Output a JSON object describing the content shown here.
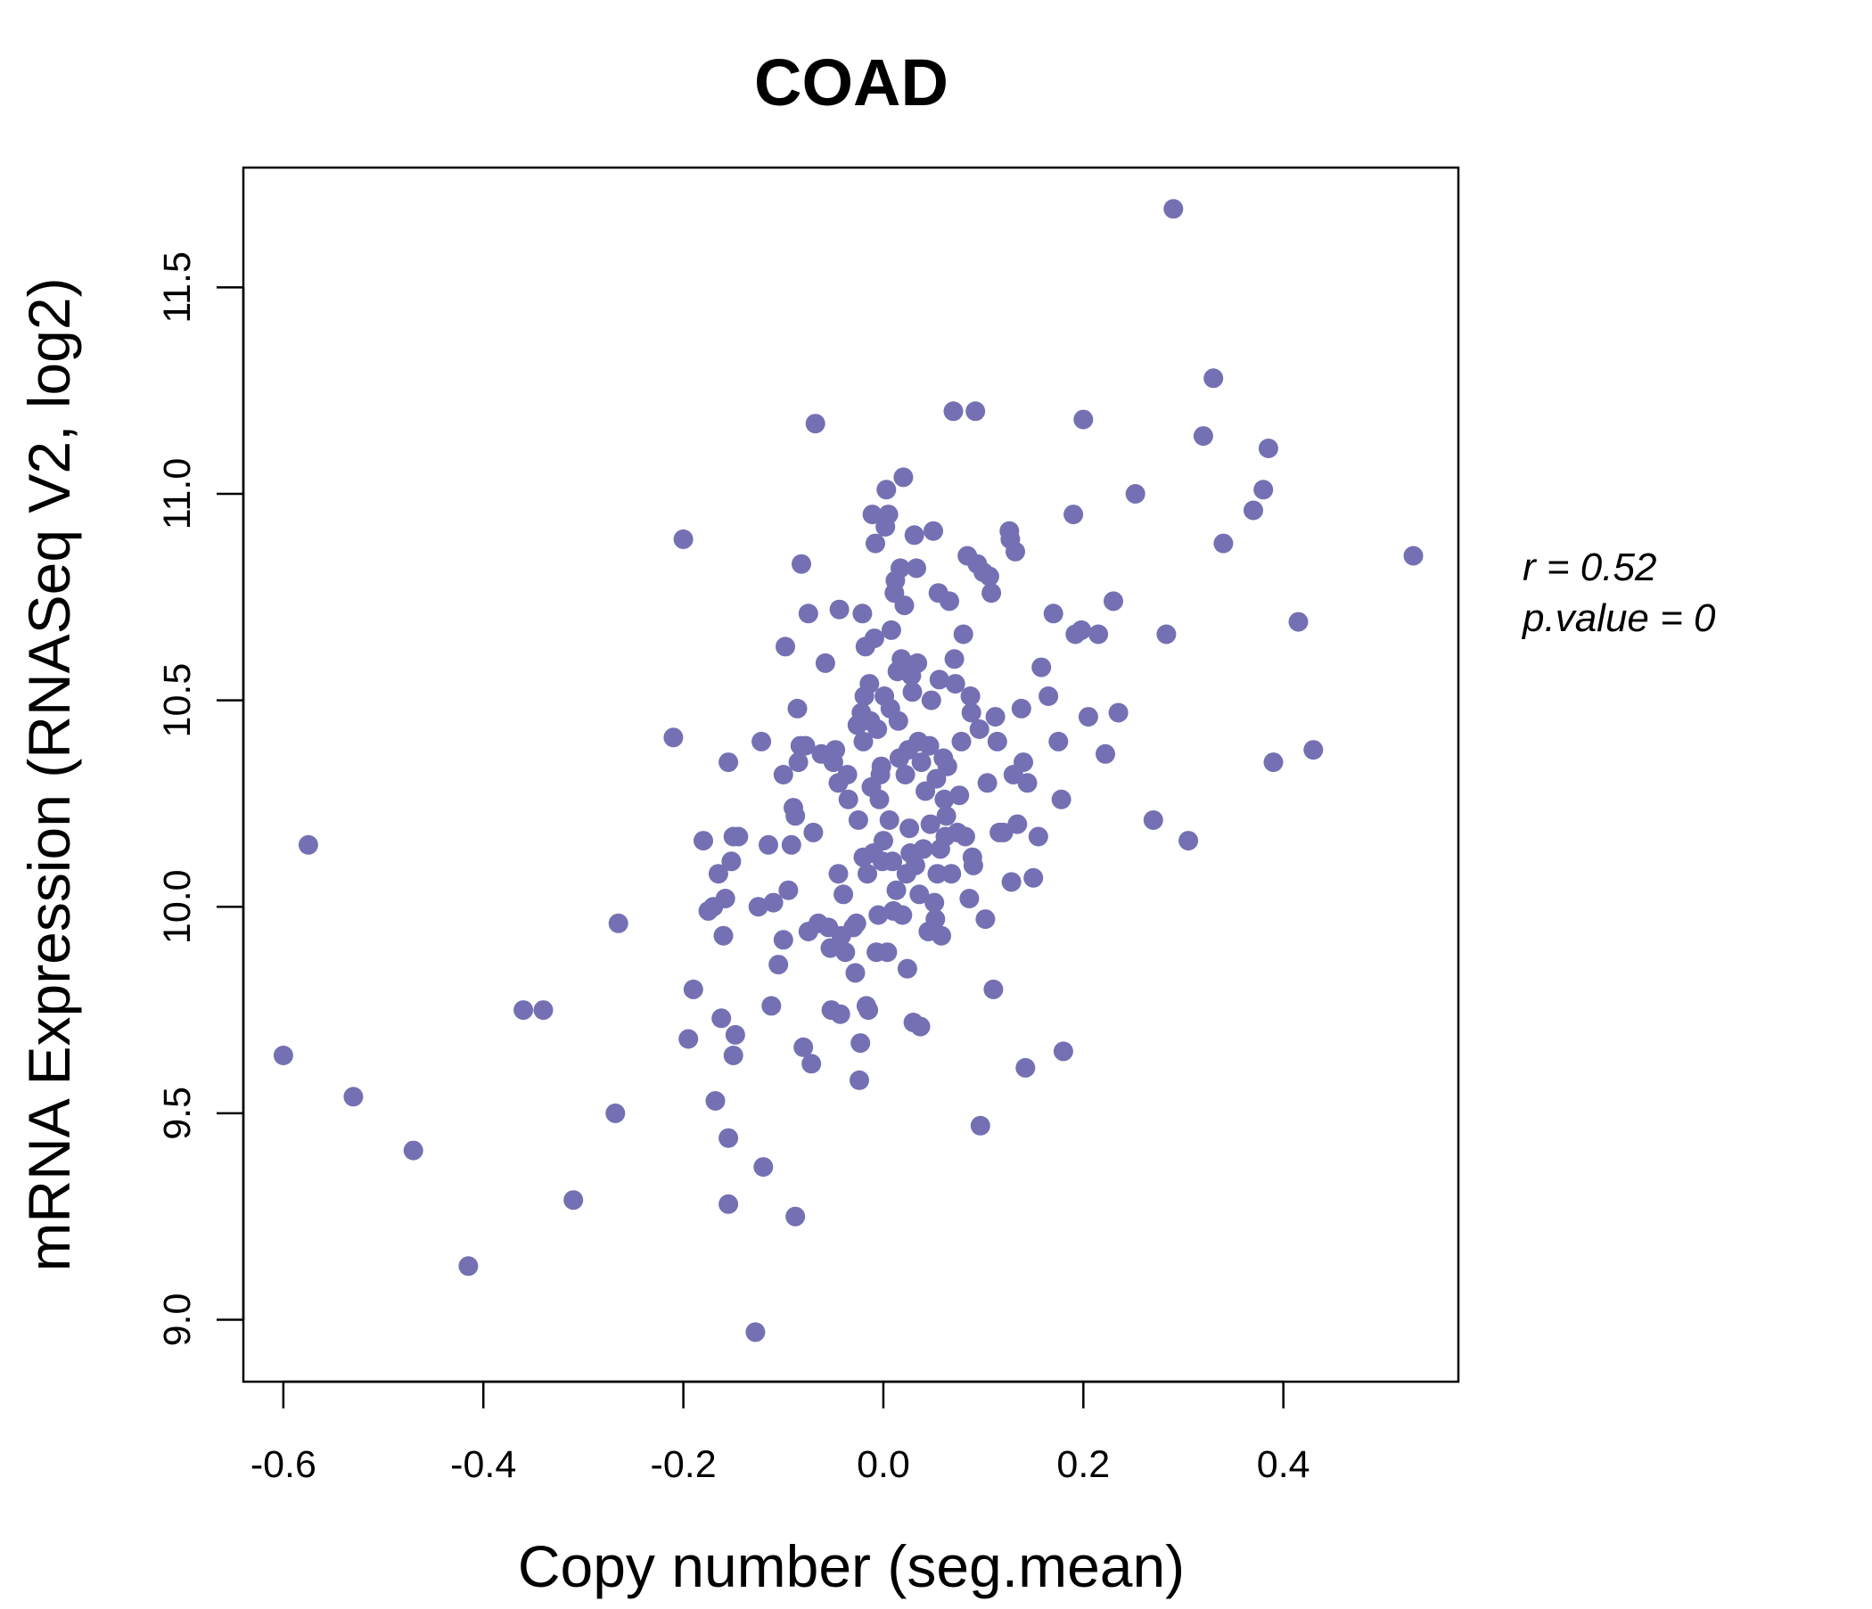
{
  "chart_data": {
    "type": "scatter",
    "title": "COAD",
    "xlabel": "Copy number (seg.mean)",
    "ylabel": "mRNA Expression (RNASeq V2, log2)",
    "xlim": [
      -0.64,
      0.575
    ],
    "ylim": [
      8.85,
      11.79
    ],
    "x_ticks": [
      -0.6,
      -0.4,
      -0.2,
      0.0,
      0.2,
      0.4
    ],
    "x_tick_labels": [
      "-0.6",
      "-0.4",
      "-0.2",
      "0.0",
      "0.2",
      "0.4"
    ],
    "y_ticks": [
      9.0,
      9.5,
      10.0,
      10.5,
      11.0,
      11.5
    ],
    "y_tick_labels": [
      "9.0",
      "9.5",
      "10.0",
      "10.5",
      "11.0",
      "11.5"
    ],
    "grid": false,
    "legend": "none",
    "colors": {
      "points": "#7570b3",
      "title": "#7570b3",
      "axes": "#000000"
    },
    "annotation": {
      "r_text": "r = 0.52",
      "p_text": "p.value = 0"
    },
    "points": [
      [
        -0.6,
        9.64
      ],
      [
        -0.575,
        10.15
      ],
      [
        -0.53,
        9.54
      ],
      [
        -0.47,
        9.41
      ],
      [
        -0.415,
        9.13
      ],
      [
        -0.36,
        9.75
      ],
      [
        -0.34,
        9.75
      ],
      [
        -0.31,
        9.29
      ],
      [
        -0.265,
        9.96
      ],
      [
        -0.268,
        9.5
      ],
      [
        -0.21,
        10.41
      ],
      [
        -0.2,
        10.89
      ],
      [
        -0.195,
        9.68
      ],
      [
        -0.19,
        9.8
      ],
      [
        -0.18,
        10.16
      ],
      [
        -0.175,
        9.99
      ],
      [
        -0.17,
        10.0
      ],
      [
        -0.168,
        9.53
      ],
      [
        -0.165,
        10.08
      ],
      [
        -0.162,
        9.73
      ],
      [
        -0.16,
        9.93
      ],
      [
        -0.158,
        10.02
      ],
      [
        -0.155,
        10.35
      ],
      [
        -0.155,
        9.44
      ],
      [
        -0.155,
        9.28
      ],
      [
        -0.152,
        10.11
      ],
      [
        -0.15,
        10.17
      ],
      [
        -0.15,
        9.64
      ],
      [
        -0.148,
        9.69
      ],
      [
        -0.145,
        10.17
      ],
      [
        -0.128,
        8.97
      ],
      [
        -0.125,
        10.0
      ],
      [
        -0.122,
        10.4
      ],
      [
        -0.12,
        9.37
      ],
      [
        -0.115,
        10.15
      ],
      [
        -0.112,
        9.76
      ],
      [
        -0.11,
        10.01
      ],
      [
        -0.105,
        9.86
      ],
      [
        -0.1,
        10.32
      ],
      [
        -0.1,
        9.92
      ],
      [
        -0.098,
        10.63
      ],
      [
        -0.095,
        10.04
      ],
      [
        -0.092,
        10.15
      ],
      [
        -0.09,
        10.24
      ],
      [
        -0.088,
        10.22
      ],
      [
        -0.088,
        9.25
      ],
      [
        -0.086,
        10.48
      ],
      [
        -0.085,
        10.35
      ],
      [
        -0.083,
        10.39
      ],
      [
        -0.082,
        10.83
      ],
      [
        -0.08,
        9.66
      ],
      [
        -0.078,
        10.39
      ],
      [
        -0.075,
        10.71
      ],
      [
        -0.075,
        9.94
      ],
      [
        -0.072,
        9.62
      ],
      [
        -0.07,
        10.18
      ],
      [
        -0.068,
        11.17
      ],
      [
        -0.065,
        9.96
      ],
      [
        -0.062,
        10.37
      ],
      [
        -0.058,
        10.59
      ],
      [
        -0.055,
        9.95
      ],
      [
        -0.053,
        9.9
      ],
      [
        -0.052,
        9.75
      ],
      [
        -0.05,
        10.35
      ],
      [
        -0.048,
        10.38
      ],
      [
        -0.045,
        10.3
      ],
      [
        -0.045,
        10.08
      ],
      [
        -0.044,
        10.72
      ],
      [
        -0.043,
        9.74
      ],
      [
        -0.042,
        9.93
      ],
      [
        -0.04,
        10.03
      ],
      [
        -0.038,
        9.89
      ],
      [
        -0.036,
        10.32
      ],
      [
        -0.035,
        10.26
      ],
      [
        -0.03,
        9.95
      ],
      [
        -0.028,
        9.84
      ],
      [
        -0.027,
        9.96
      ],
      [
        -0.026,
        10.44
      ],
      [
        -0.025,
        10.21
      ],
      [
        -0.024,
        9.58
      ],
      [
        -0.023,
        9.67
      ],
      [
        -0.022,
        10.47
      ],
      [
        -0.021,
        10.71
      ],
      [
        -0.02,
        10.4
      ],
      [
        -0.02,
        10.12
      ],
      [
        -0.019,
        10.51
      ],
      [
        -0.018,
        10.63
      ],
      [
        -0.017,
        9.76
      ],
      [
        -0.016,
        10.08
      ],
      [
        -0.015,
        9.75
      ],
      [
        -0.014,
        10.54
      ],
      [
        -0.013,
        10.45
      ],
      [
        -0.012,
        10.29
      ],
      [
        -0.011,
        10.95
      ],
      [
        -0.01,
        10.13
      ],
      [
        -0.009,
        10.65
      ],
      [
        -0.008,
        10.88
      ],
      [
        -0.007,
        9.89
      ],
      [
        -0.006,
        10.43
      ],
      [
        -0.005,
        9.98
      ],
      [
        -0.004,
        10.26
      ],
      [
        -0.003,
        10.32
      ],
      [
        -0.002,
        10.34
      ],
      [
        -0.001,
        10.11
      ],
      [
        0.0,
        10.16
      ],
      [
        0.001,
        10.51
      ],
      [
        0.002,
        10.92
      ],
      [
        0.003,
        11.01
      ],
      [
        0.004,
        9.89
      ],
      [
        0.005,
        10.95
      ],
      [
        0.006,
        10.21
      ],
      [
        0.007,
        10.48
      ],
      [
        0.008,
        10.67
      ],
      [
        0.009,
        10.11
      ],
      [
        0.01,
        9.99
      ],
      [
        0.011,
        10.76
      ],
      [
        0.012,
        10.79
      ],
      [
        0.013,
        10.04
      ],
      [
        0.014,
        10.57
      ],
      [
        0.015,
        10.45
      ],
      [
        0.016,
        10.36
      ],
      [
        0.017,
        10.82
      ],
      [
        0.018,
        10.6
      ],
      [
        0.019,
        9.98
      ],
      [
        0.02,
        11.04
      ],
      [
        0.021,
        10.73
      ],
      [
        0.022,
        10.32
      ],
      [
        0.023,
        10.08
      ],
      [
        0.024,
        9.85
      ],
      [
        0.025,
        10.38
      ],
      [
        0.026,
        10.19
      ],
      [
        0.027,
        10.13
      ],
      [
        0.028,
        10.56
      ],
      [
        0.029,
        10.52
      ],
      [
        0.03,
        9.72
      ],
      [
        0.031,
        10.9
      ],
      [
        0.032,
        10.1
      ],
      [
        0.033,
        10.82
      ],
      [
        0.034,
        10.59
      ],
      [
        0.035,
        10.4
      ],
      [
        0.036,
        10.03
      ],
      [
        0.037,
        9.71
      ],
      [
        0.038,
        10.35
      ],
      [
        0.04,
        10.14
      ],
      [
        0.042,
        10.28
      ],
      [
        0.045,
        9.94
      ],
      [
        0.046,
        10.39
      ],
      [
        0.047,
        10.2
      ],
      [
        0.048,
        10.5
      ],
      [
        0.05,
        10.91
      ],
      [
        0.051,
        10.01
      ],
      [
        0.052,
        9.97
      ],
      [
        0.053,
        10.31
      ],
      [
        0.054,
        10.08
      ],
      [
        0.055,
        10.76
      ],
      [
        0.056,
        10.55
      ],
      [
        0.057,
        10.14
      ],
      [
        0.058,
        9.93
      ],
      [
        0.06,
        10.36
      ],
      [
        0.061,
        10.26
      ],
      [
        0.062,
        10.17
      ],
      [
        0.063,
        10.22
      ],
      [
        0.064,
        10.34
      ],
      [
        0.066,
        10.74
      ],
      [
        0.068,
        10.08
      ],
      [
        0.07,
        11.2
      ],
      [
        0.071,
        10.6
      ],
      [
        0.072,
        10.54
      ],
      [
        0.074,
        10.18
      ],
      [
        0.076,
        10.27
      ],
      [
        0.078,
        10.4
      ],
      [
        0.08,
        10.66
      ],
      [
        0.082,
        10.17
      ],
      [
        0.084,
        10.85
      ],
      [
        0.086,
        10.02
      ],
      [
        0.087,
        10.51
      ],
      [
        0.088,
        10.47
      ],
      [
        0.089,
        10.12
      ],
      [
        0.09,
        10.1
      ],
      [
        0.092,
        11.2
      ],
      [
        0.094,
        10.83
      ],
      [
        0.096,
        10.43
      ],
      [
        0.097,
        9.47
      ],
      [
        0.1,
        10.81
      ],
      [
        0.102,
        9.97
      ],
      [
        0.104,
        10.3
      ],
      [
        0.106,
        10.8
      ],
      [
        0.108,
        10.76
      ],
      [
        0.11,
        9.8
      ],
      [
        0.112,
        10.46
      ],
      [
        0.114,
        10.4
      ],
      [
        0.116,
        10.18
      ],
      [
        0.12,
        10.18
      ],
      [
        0.126,
        10.91
      ],
      [
        0.127,
        10.89
      ],
      [
        0.128,
        10.06
      ],
      [
        0.13,
        10.32
      ],
      [
        0.132,
        10.86
      ],
      [
        0.134,
        10.2
      ],
      [
        0.138,
        10.48
      ],
      [
        0.14,
        10.35
      ],
      [
        0.142,
        9.61
      ],
      [
        0.144,
        10.3
      ],
      [
        0.15,
        10.07
      ],
      [
        0.155,
        10.17
      ],
      [
        0.158,
        10.58
      ],
      [
        0.165,
        10.51
      ],
      [
        0.17,
        10.71
      ],
      [
        0.175,
        10.4
      ],
      [
        0.178,
        10.26
      ],
      [
        0.18,
        9.65
      ],
      [
        0.19,
        10.95
      ],
      [
        0.192,
        10.66
      ],
      [
        0.198,
        10.67
      ],
      [
        0.2,
        11.18
      ],
      [
        0.205,
        10.46
      ],
      [
        0.215,
        10.66
      ],
      [
        0.222,
        10.37
      ],
      [
        0.23,
        10.74
      ],
      [
        0.235,
        10.47
      ],
      [
        0.252,
        11.0
      ],
      [
        0.27,
        10.21
      ],
      [
        0.283,
        10.66
      ],
      [
        0.29,
        11.69
      ],
      [
        0.305,
        10.16
      ],
      [
        0.32,
        11.14
      ],
      [
        0.33,
        11.28
      ],
      [
        0.34,
        10.88
      ],
      [
        0.37,
        10.96
      ],
      [
        0.38,
        11.01
      ],
      [
        0.385,
        11.11
      ],
      [
        0.39,
        10.35
      ],
      [
        0.415,
        10.69
      ],
      [
        0.43,
        10.38
      ],
      [
        0.53,
        10.85
      ]
    ]
  }
}
